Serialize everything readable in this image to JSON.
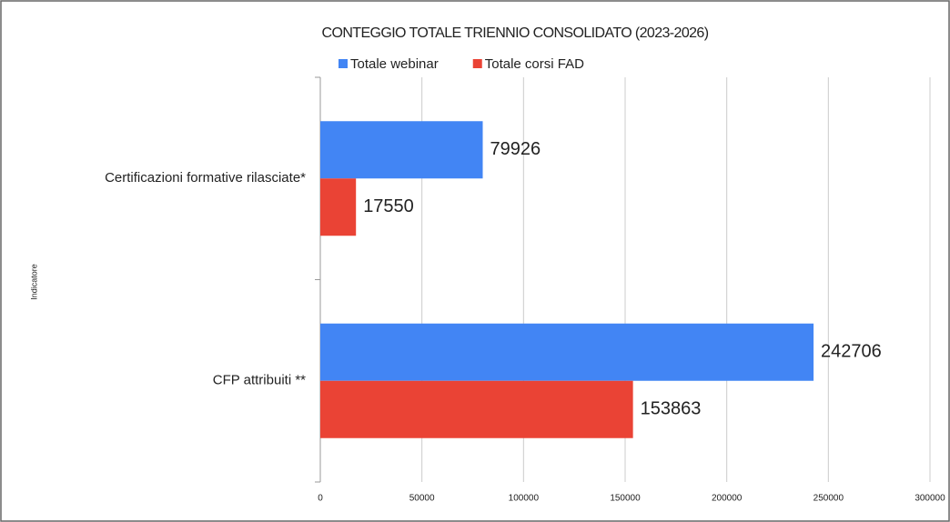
{
  "chart_data": {
    "type": "bar",
    "orientation": "horizontal",
    "title": "CONTEGGIO TOTALE TRIENNIO CONSOLIDATO (2023-2026)",
    "y_label": "Indicatore",
    "categories": [
      "Certificazioni formative rilasciate*",
      "CFP attribuiti **"
    ],
    "series": [
      {
        "name": "Totale webinar",
        "color": "#4285f4",
        "values": [
          79926,
          242706
        ]
      },
      {
        "name": "Totale corsi FAD",
        "color": "#ea4335",
        "values": [
          17550,
          153863
        ]
      }
    ],
    "xlim": [
      0,
      300000
    ],
    "xticks": [
      0,
      50000,
      100000,
      150000,
      200000,
      250000,
      300000
    ],
    "grid": true,
    "legend": "top"
  }
}
